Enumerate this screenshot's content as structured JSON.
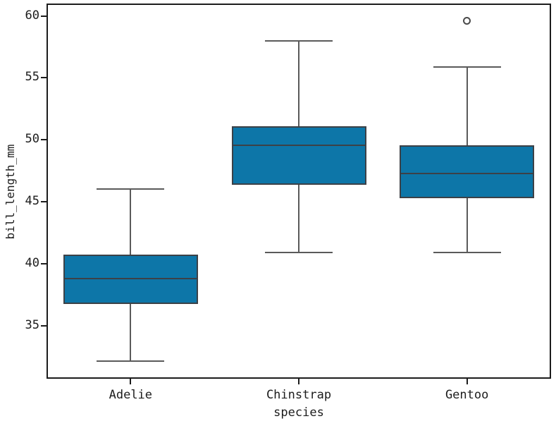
{
  "chart_data": {
    "type": "boxplot",
    "title": "",
    "xlabel": "species",
    "ylabel": "bill_length_mm",
    "categories": [
      "Adelie",
      "Chinstrap",
      "Gentoo"
    ],
    "y_ticks": [
      35,
      40,
      45,
      50,
      55,
      60
    ],
    "ylim": [
      30.7,
      61.0
    ],
    "grid": false,
    "legend": "none",
    "series": [
      {
        "category": "Adelie",
        "whisker_low": 32.1,
        "q1": 36.75,
        "median": 38.8,
        "q3": 40.75,
        "whisker_high": 46.0,
        "outliers": []
      },
      {
        "category": "Chinstrap",
        "whisker_low": 40.9,
        "q1": 46.35,
        "median": 49.55,
        "q3": 51.08,
        "whisker_high": 58.0,
        "outliers": []
      },
      {
        "category": "Gentoo",
        "whisker_low": 40.9,
        "q1": 45.3,
        "median": 47.3,
        "q3": 49.55,
        "whisker_high": 55.9,
        "outliers": [
          59.6
        ]
      }
    ],
    "colors": {
      "box_fill": "#0d76a8",
      "box_edge": "#3c4147",
      "whisker": "#5a5a5a",
      "axis": "#1c1c1c"
    }
  }
}
